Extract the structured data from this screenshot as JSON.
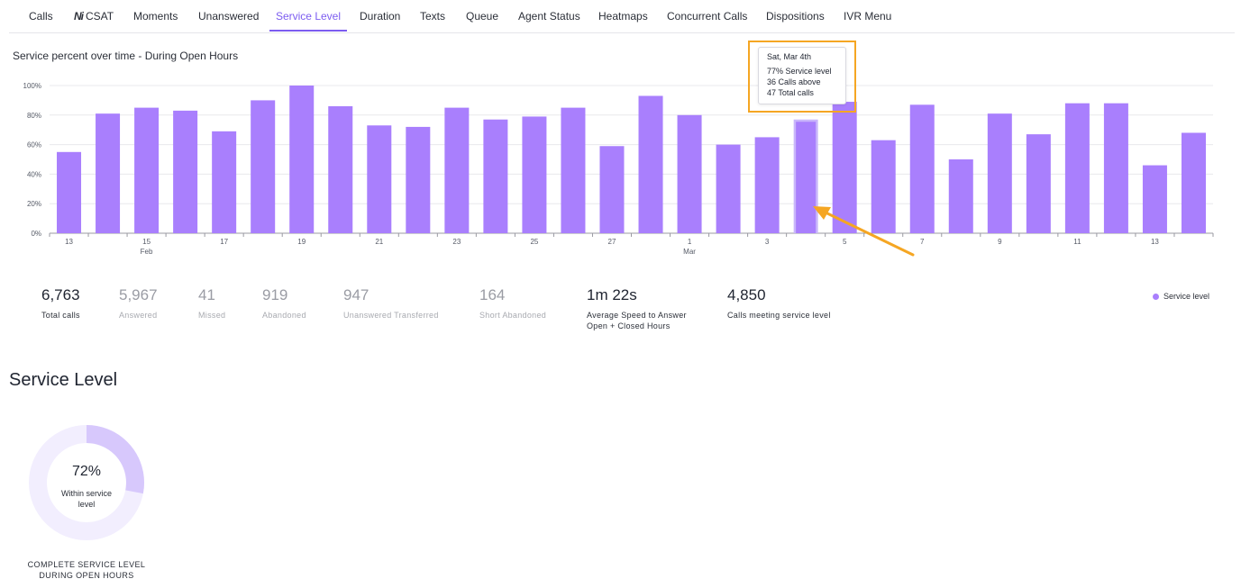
{
  "tabs": [
    {
      "label": "Calls",
      "active": false
    },
    {
      "label": "CSAT",
      "active": false,
      "icon": "ni-logo-icon",
      "icon_glyph": "Ni"
    },
    {
      "label": "Moments",
      "active": false
    },
    {
      "label": "Unanswered",
      "active": false
    },
    {
      "label": "Service Level",
      "active": true
    },
    {
      "label": "Duration",
      "active": false
    },
    {
      "label": "Texts",
      "active": false
    },
    {
      "label": "Queue",
      "active": false
    },
    {
      "label": "Agent Status",
      "active": false
    },
    {
      "label": "Heatmaps",
      "active": false
    },
    {
      "label": "Concurrent Calls",
      "active": false
    },
    {
      "label": "Dispositions",
      "active": false
    },
    {
      "label": "IVR Menu",
      "active": false
    }
  ],
  "chart": {
    "title": "Service percent over time - During Open Hours"
  },
  "chart_data": {
    "type": "bar",
    "title": "Service percent over time - During Open Hours",
    "xlabel": "",
    "ylabel": "",
    "ylim": [
      0,
      100
    ],
    "y_ticks": [
      "0%",
      "20%",
      "40%",
      "60%",
      "80%",
      "100%"
    ],
    "grid": true,
    "legend_position": "bottom-right",
    "categories": [
      "Feb 13",
      "Feb 14",
      "Feb 15",
      "Feb 16",
      "Feb 17",
      "Feb 18",
      "Feb 19",
      "Feb 20",
      "Feb 21",
      "Feb 22",
      "Feb 23",
      "Feb 24",
      "Feb 25",
      "Feb 26",
      "Feb 27",
      "Feb 28",
      "Mar 1",
      "Mar 2",
      "Mar 3",
      "Mar 4",
      "Mar 5",
      "Mar 6",
      "Mar 7",
      "Mar 8",
      "Mar 9",
      "Mar 10",
      "Mar 11",
      "Mar 12",
      "Mar 13",
      "Mar 14"
    ],
    "x_tick_labels": [
      {
        "index": 0,
        "day": "13",
        "month": ""
      },
      {
        "index": 2,
        "day": "15",
        "month": "Feb"
      },
      {
        "index": 4,
        "day": "17",
        "month": ""
      },
      {
        "index": 6,
        "day": "19",
        "month": ""
      },
      {
        "index": 8,
        "day": "21",
        "month": ""
      },
      {
        "index": 10,
        "day": "23",
        "month": ""
      },
      {
        "index": 12,
        "day": "25",
        "month": ""
      },
      {
        "index": 14,
        "day": "27",
        "month": ""
      },
      {
        "index": 16,
        "day": "1",
        "month": "Mar"
      },
      {
        "index": 18,
        "day": "3",
        "month": ""
      },
      {
        "index": 20,
        "day": "5",
        "month": ""
      },
      {
        "index": 22,
        "day": "7",
        "month": ""
      },
      {
        "index": 24,
        "day": "9",
        "month": ""
      },
      {
        "index": 26,
        "day": "11",
        "month": ""
      },
      {
        "index": 28,
        "day": "13",
        "month": ""
      }
    ],
    "series": [
      {
        "name": "Service level",
        "color": "#a97ffd",
        "values": [
          55,
          81,
          85,
          83,
          69,
          90,
          100,
          86,
          73,
          72,
          85,
          77,
          79,
          85,
          59,
          93,
          80,
          60,
          65,
          77,
          89,
          63,
          87,
          50,
          81,
          67,
          88,
          88,
          46,
          68
        ]
      }
    ],
    "highlighted_index": 19,
    "highlight_color": "#c9b6fb"
  },
  "tooltip": {
    "date": "Sat, Mar 4th",
    "lines": [
      "77% Service level",
      "36 Calls above",
      "47 Total calls"
    ]
  },
  "annotation_color": "#f5a623",
  "stats": [
    {
      "value": "6,763",
      "label": "Total calls",
      "muted": false
    },
    {
      "value": "5,967",
      "label": "Answered",
      "muted": true
    },
    {
      "value": "41",
      "label": "Missed",
      "muted": true
    },
    {
      "value": "919",
      "label": "Abandoned",
      "muted": true
    },
    {
      "value": "947",
      "label": "Unanswered Transferred",
      "muted": true
    },
    {
      "value": "164",
      "label": "Short Abandoned",
      "muted": true
    },
    {
      "value": "1m 22s",
      "label": "Average Speed to Answer",
      "label2": "Open + Closed Hours",
      "muted": false
    },
    {
      "value": "4,850",
      "label": "Calls meeting service level",
      "muted": false
    }
  ],
  "legend": {
    "label": "Service level"
  },
  "service_level": {
    "heading": "Service Level",
    "percent_text": "72%",
    "percent": 72,
    "subtitle": "Within service level",
    "caption_line1": "COMPLETE SERVICE LEVEL",
    "caption_line2": "DURING OPEN HOURS",
    "fill_color": "#d7c8fc",
    "track_color": "#f2eefe"
  }
}
